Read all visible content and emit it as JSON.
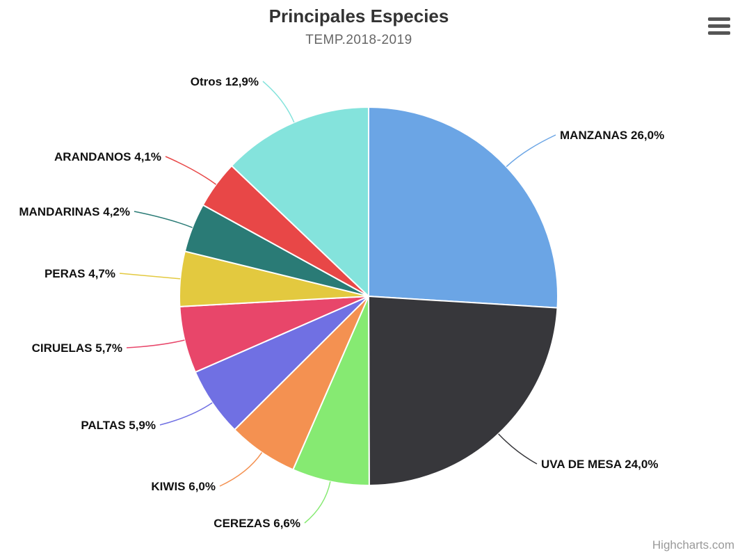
{
  "menu": {
    "icon": "hamburger-menu-icon"
  },
  "credits": "Highcharts.com",
  "chart_data": {
    "type": "pie",
    "title": "Principales Especies",
    "subtitle": "TEMP.2018-2019",
    "slices": [
      {
        "name": "MANZANAS",
        "value": 26.0,
        "label": "MANZANAS 26,0%",
        "color": "#6ba5e5"
      },
      {
        "name": "UVA DE MESA",
        "value": 24.0,
        "label": "UVA DE MESA 24,0%",
        "color": "#37373b"
      },
      {
        "name": "CEREZAS",
        "value": 6.6,
        "label": "CEREZAS 6,6%",
        "color": "#86ea72"
      },
      {
        "name": "KIWIS",
        "value": 6.0,
        "label": "KIWIS 6,0%",
        "color": "#f49151"
      },
      {
        "name": "PALTAS",
        "value": 5.9,
        "label": "PALTAS 5,9%",
        "color": "#7070e3"
      },
      {
        "name": "CIRUELAS",
        "value": 5.7,
        "label": "CIRUELAS 5,7%",
        "color": "#e8466a"
      },
      {
        "name": "PERAS",
        "value": 4.7,
        "label": "PERAS 4,7%",
        "color": "#e3c93f"
      },
      {
        "name": "MANDARINAS",
        "value": 4.2,
        "label": "MANDARINAS 4,2%",
        "color": "#2a7b76"
      },
      {
        "name": "ARANDANOS",
        "value": 4.1,
        "label": "ARANDANOS 4,1%",
        "color": "#e84747"
      },
      {
        "name": "Otros",
        "value": 12.9,
        "label": "Otros 12,9%",
        "color": "#84e3dc"
      }
    ],
    "legend": "none"
  }
}
